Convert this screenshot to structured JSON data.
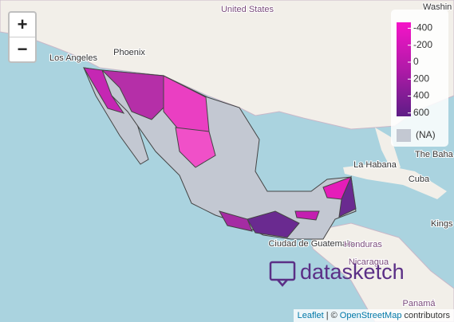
{
  "map": {
    "zoom_in": "+",
    "zoom_out": "−",
    "place_labels": [
      "United States",
      "Los Angeles",
      "Phoenix",
      "Washin",
      "The Baha",
      "La Habana",
      "Cuba",
      "Kings",
      "Ciudad de Guatemala",
      "Honduras",
      "Nicaragua",
      "Panamá"
    ]
  },
  "legend": {
    "domain": [
      -470,
      640
    ],
    "ticks": [
      -400,
      -200,
      0,
      200,
      400,
      600
    ],
    "colors": [
      "#f514c8",
      "#b01aa8",
      "#5e1d86"
    ],
    "na_label": "(NA)",
    "na_color": "#c3c8d2"
  },
  "logo": "datasketch",
  "attribution": {
    "leaflet": "Leaflet",
    "separator": "| ©",
    "osm": "OpenStreetMap",
    "contributors": "contributors"
  }
}
